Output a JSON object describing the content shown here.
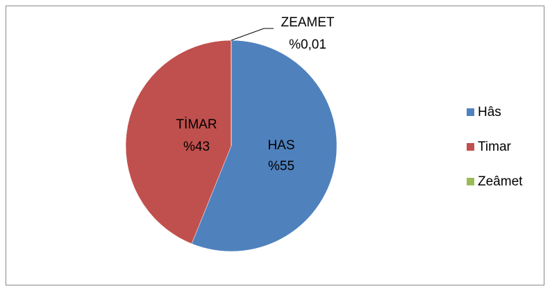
{
  "chart_data": {
    "type": "pie",
    "categories": [
      "Hâs",
      "Timar",
      "Zeâmet"
    ],
    "label_names": [
      "HAS",
      "TİMAR",
      "ZEAMET"
    ],
    "values": [
      55,
      43,
      0.01
    ],
    "value_labels": [
      "%55",
      "%43",
      "%0,01"
    ],
    "colors": [
      "#4f81bd",
      "#c0504d",
      "#9bbb59"
    ],
    "legend": "right"
  }
}
